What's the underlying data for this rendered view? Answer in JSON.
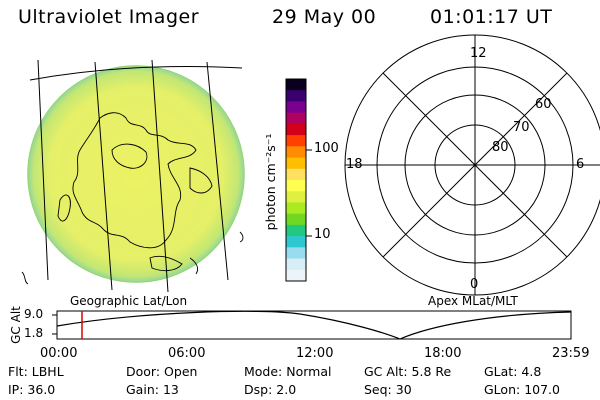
{
  "header": {
    "title": "Ultraviolet Imager",
    "date": "29 May 00",
    "time": "01:01:17 UT"
  },
  "colorbar": {
    "unit_label": "photon cm⁻²s⁻¹",
    "ticks": [
      "100",
      "10"
    ],
    "colors": [
      "#0a001e",
      "#3a0070",
      "#7a0090",
      "#b00060",
      "#d4001a",
      "#ff4000",
      "#ff8c00",
      "#ffbe00",
      "#ffe060",
      "#ffff50",
      "#e0f040",
      "#aaea20",
      "#70d820",
      "#20c880",
      "#30c8d0",
      "#9adcef",
      "#d8eef6",
      "#eaf4f9"
    ]
  },
  "image_panel": {
    "caption": "Geographic Lat/Lon",
    "disk_color": "#e6f05a",
    "rim_color": "#8fd470"
  },
  "polar_panel": {
    "caption": "Apex MLat/MLT",
    "mlt_labels": {
      "top": "12",
      "right": "6",
      "bottom": "0",
      "left": "18"
    },
    "mlat_labels": [
      "60",
      "70",
      "80"
    ]
  },
  "altitude_plot": {
    "ylabel": "GC Alt",
    "yticks": [
      "9.0",
      "1.8"
    ],
    "xticks": [
      "00:00",
      "06:00",
      "12:00",
      "18:00",
      "23:59"
    ],
    "marker_time": "01:01",
    "marker_color": "#dd0000"
  },
  "status": {
    "row1": [
      {
        "label": "Flt:",
        "value": "LBHL"
      },
      {
        "label": "Door:",
        "value": "Open"
      },
      {
        "label": "Mode:",
        "value": "Normal"
      },
      {
        "label": "GC Alt:",
        "value": "5.8 Re"
      },
      {
        "label": "GLat:",
        "value": "4.8"
      }
    ],
    "row2": [
      {
        "label": "IP:",
        "value": "36.0"
      },
      {
        "label": "Gain:",
        "value": "13"
      },
      {
        "label": "Dsp:",
        "value": "2.0"
      },
      {
        "label": "Seq:",
        "value": "30"
      },
      {
        "label": "GLon:",
        "value": "107.0"
      }
    ]
  }
}
